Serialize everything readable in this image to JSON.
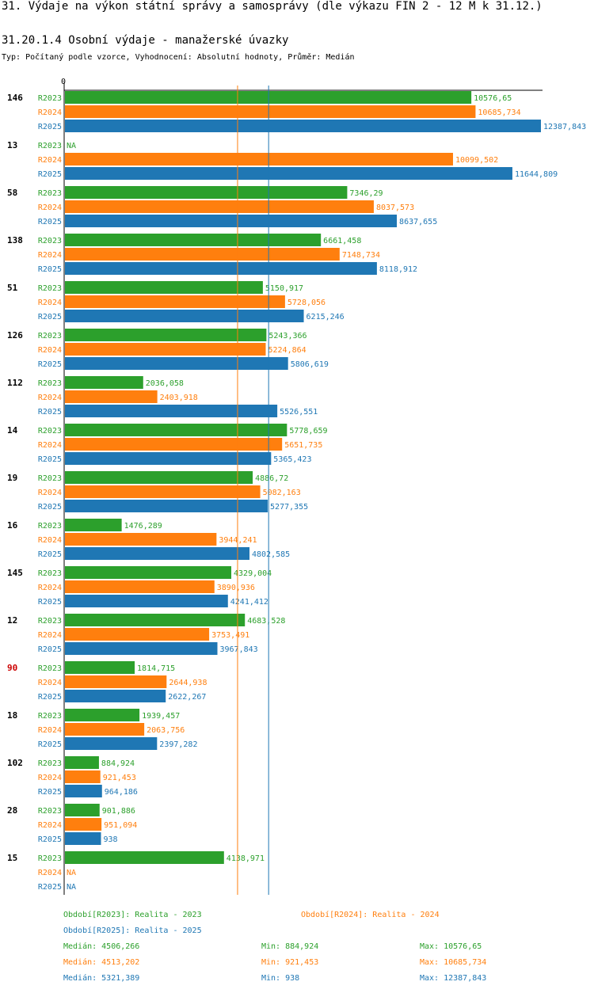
{
  "header": {
    "title": "31. Výdaje na výkon státní správy a samosprávy (dle výkazu FIN 2 - 12 M k 31.12.)",
    "subtitle": "31.20.1.4 Osobní výdaje - manažerské úvazky",
    "type_line": "Typ: Počítaný podle vzorce, Vyhodnocení: Absolutní hodnoty, Průměr: Medián"
  },
  "colors": {
    "R2023": "#2ca02c",
    "R2024": "#ff7f0e",
    "R2025": "#1f77b4",
    "highlight": "#cc0000"
  },
  "chart_data": {
    "type": "bar",
    "orientation": "horizontal",
    "axis_zero_label": "0",
    "xlim": [
      0,
      12387.843
    ],
    "series_names": [
      "R2023",
      "R2024",
      "R2025"
    ],
    "groups": [
      {
        "id": "146",
        "highlight": false,
        "values": [
          10576.65,
          10685.734,
          12387.843
        ],
        "labels": [
          "10576,65",
          "10685,734",
          "12387,843"
        ]
      },
      {
        "id": "13",
        "highlight": false,
        "values": [
          null,
          10099.502,
          11644.809
        ],
        "labels": [
          "NA",
          "10099,502",
          "11644,809"
        ]
      },
      {
        "id": "58",
        "highlight": false,
        "values": [
          7346.29,
          8037.573,
          8637.655
        ],
        "labels": [
          "7346,29",
          "8037,573",
          "8637,655"
        ]
      },
      {
        "id": "138",
        "highlight": false,
        "values": [
          6661.458,
          7148.734,
          8118.912
        ],
        "labels": [
          "6661,458",
          "7148,734",
          "8118,912"
        ]
      },
      {
        "id": "51",
        "highlight": false,
        "values": [
          5150.917,
          5728.056,
          6215.246
        ],
        "labels": [
          "5150,917",
          "5728,056",
          "6215,246"
        ]
      },
      {
        "id": "126",
        "highlight": false,
        "values": [
          5243.366,
          5224.864,
          5806.619
        ],
        "labels": [
          "5243,366",
          "5224,864",
          "5806,619"
        ]
      },
      {
        "id": "112",
        "highlight": false,
        "values": [
          2036.058,
          2403.918,
          5526.551
        ],
        "labels": [
          "2036,058",
          "2403,918",
          "5526,551"
        ]
      },
      {
        "id": "14",
        "highlight": false,
        "values": [
          5778.659,
          5651.735,
          5365.423
        ],
        "labels": [
          "5778,659",
          "5651,735",
          "5365,423"
        ]
      },
      {
        "id": "19",
        "highlight": false,
        "values": [
          4886.72,
          5082.163,
          5277.355
        ],
        "labels": [
          "4886,72",
          "5082,163",
          "5277,355"
        ]
      },
      {
        "id": "16",
        "highlight": false,
        "values": [
          1476.289,
          3944.241,
          4802.585
        ],
        "labels": [
          "1476,289",
          "3944,241",
          "4802,585"
        ]
      },
      {
        "id": "145",
        "highlight": false,
        "values": [
          4329.004,
          3890.936,
          4241.412
        ],
        "labels": [
          "4329,004",
          "3890,936",
          "4241,412"
        ]
      },
      {
        "id": "12",
        "highlight": false,
        "values": [
          4683.528,
          3753.491,
          3967.843
        ],
        "labels": [
          "4683,528",
          "3753,491",
          "3967,843"
        ]
      },
      {
        "id": "90",
        "highlight": true,
        "values": [
          1814.715,
          2644.938,
          2622.267
        ],
        "labels": [
          "1814,715",
          "2644,938",
          "2622,267"
        ]
      },
      {
        "id": "18",
        "highlight": false,
        "values": [
          1939.457,
          2063.756,
          2397.282
        ],
        "labels": [
          "1939,457",
          "2063,756",
          "2397,282"
        ]
      },
      {
        "id": "102",
        "highlight": false,
        "values": [
          884.924,
          921.453,
          964.186
        ],
        "labels": [
          "884,924",
          "921,453",
          "964,186"
        ]
      },
      {
        "id": "28",
        "highlight": false,
        "values": [
          901.886,
          951.094,
          938
        ],
        "labels": [
          "901,886",
          "951,094",
          "938"
        ]
      },
      {
        "id": "15",
        "highlight": false,
        "values": [
          4138.971,
          null,
          null
        ],
        "labels": [
          "4138,971",
          "NA",
          "NA"
        ]
      }
    ],
    "median_lines": [
      {
        "series": "R2024",
        "value": 4513.202
      },
      {
        "series": "R2025",
        "value": 5321.389
      }
    ]
  },
  "legend": {
    "periods": [
      {
        "series": "R2023",
        "text": "Období[R2023]: Realita - 2023"
      },
      {
        "series": "R2024",
        "text": "Období[R2024]: Realita - 2024"
      },
      {
        "series": "R2025",
        "text": "Období[R2025]: Realita - 2025"
      }
    ],
    "stats": [
      {
        "series": "R2023",
        "median": "Medián: 4506,266",
        "min": "Min: 884,924",
        "max": "Max: 10576,65"
      },
      {
        "series": "R2024",
        "median": "Medián: 4513,202",
        "min": "Min: 921,453",
        "max": "Max: 10685,734"
      },
      {
        "series": "R2025",
        "median": "Medián: 5321,389",
        "min": "Min: 938",
        "max": "Max: 12387,843"
      }
    ]
  }
}
